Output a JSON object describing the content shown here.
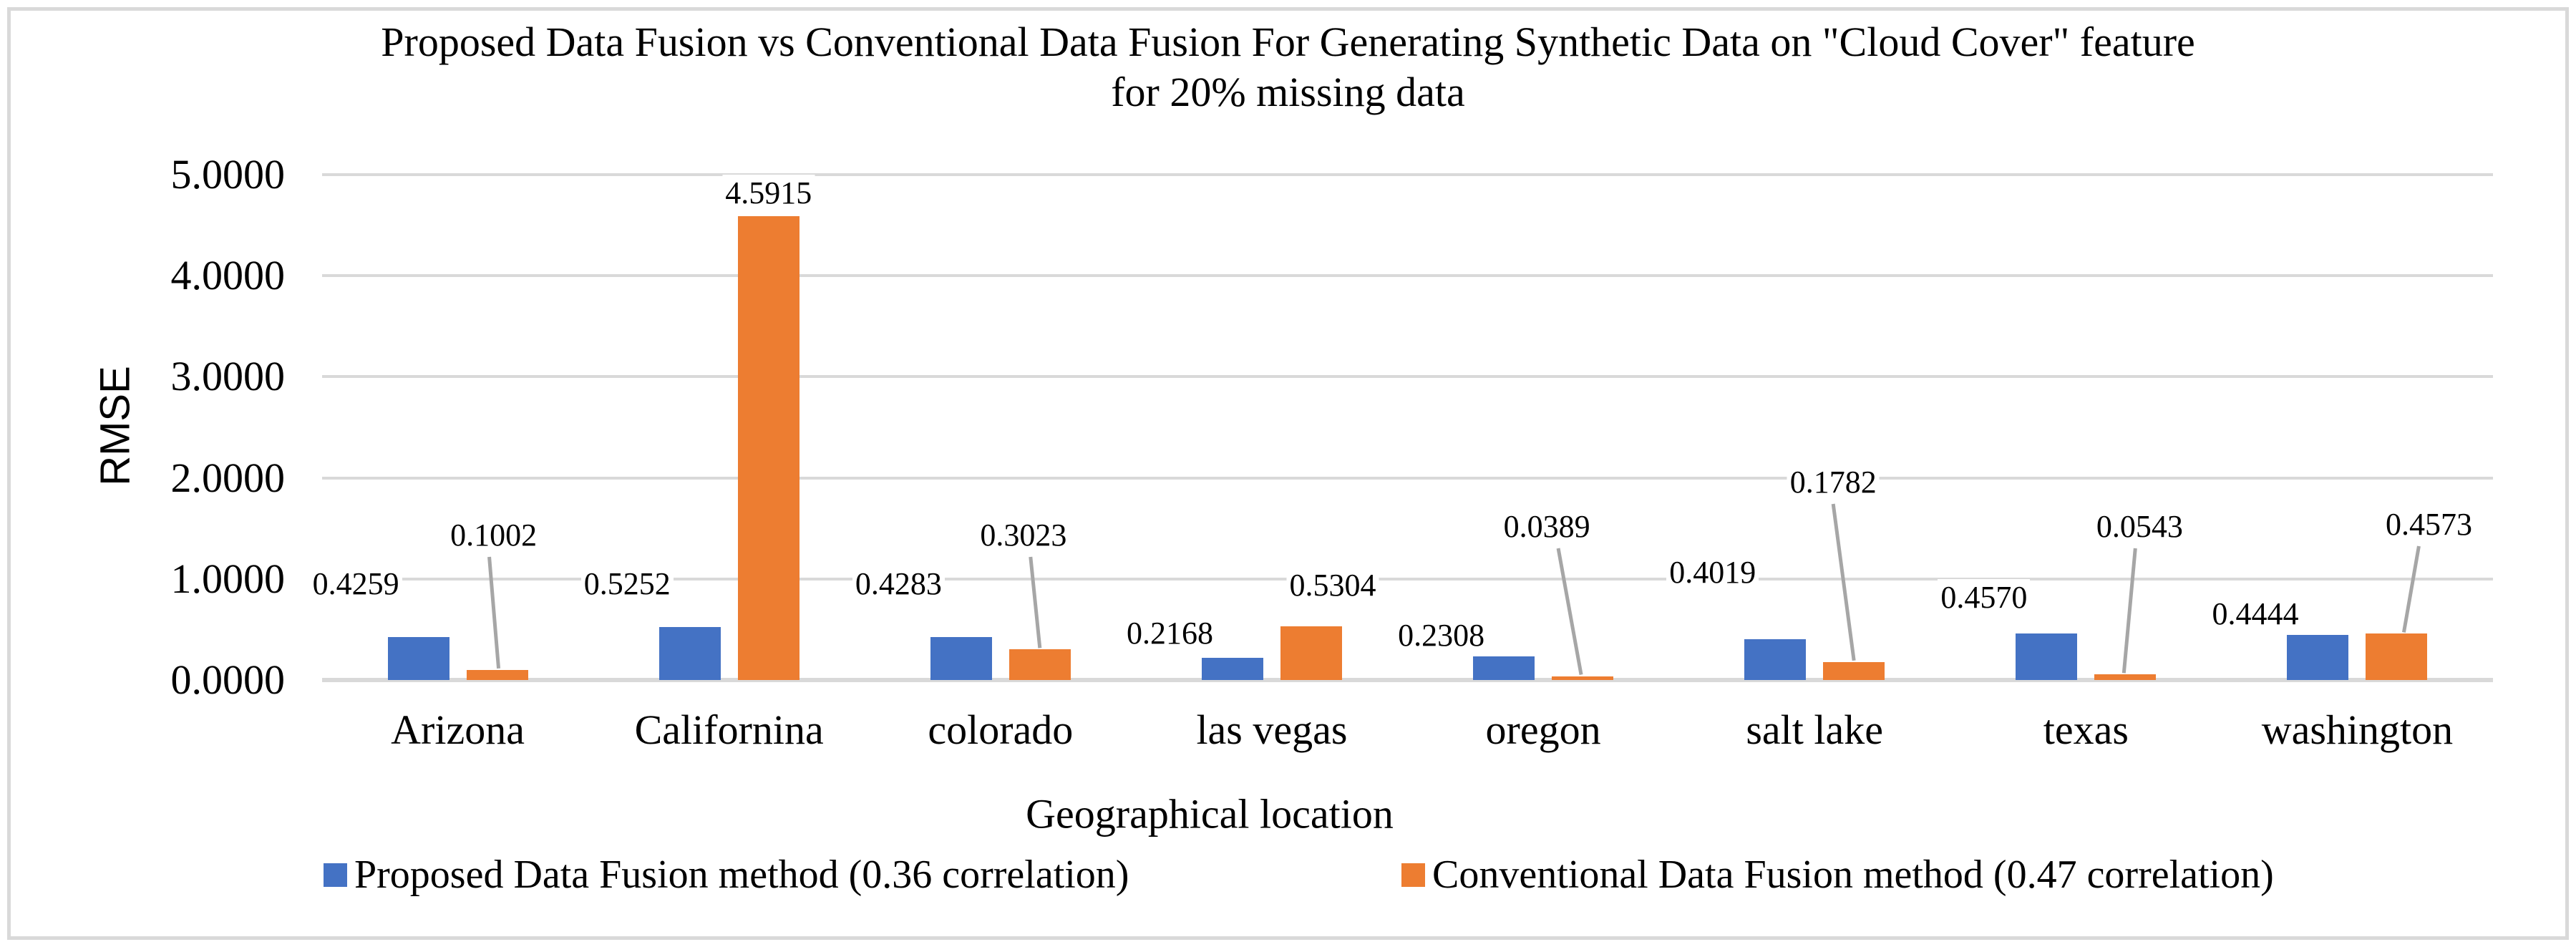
{
  "title": {
    "line1": "Proposed Data Fusion vs Conventional Data Fusion For Generating Synthetic Data on \"Cloud Cover\" feature",
    "line2": "for 20% missing data"
  },
  "y_axis": {
    "title": "RMSE",
    "tick_labels": [
      "0.0000",
      "1.0000",
      "2.0000",
      "3.0000",
      "4.0000",
      "5.0000"
    ],
    "min": 0,
    "max": 5,
    "step": 1
  },
  "x_axis": {
    "title": "Geographical location",
    "categories": [
      "Arizona",
      "Californina",
      "colorado",
      "las vegas",
      "oregon",
      "salt lake",
      "texas",
      "washington"
    ]
  },
  "legend": {
    "position": "bottom",
    "items": [
      {
        "label": "Proposed Data Fusion method (0.36 correlation)",
        "color": "#4472C4"
      },
      {
        "label": "Conventional Data Fusion method (0.47 correlation)",
        "color": "#ED7D31"
      }
    ]
  },
  "chart_data": {
    "type": "bar",
    "title": "Proposed Data Fusion vs Conventional Data Fusion For Generating Synthetic Data on \"Cloud Cover\" feature for 20% missing data",
    "xlabel": "Geographical location",
    "ylabel": "RMSE",
    "ylim": [
      0,
      5
    ],
    "grid": true,
    "legend_position": "bottom",
    "categories": [
      "Arizona",
      "Californina",
      "colorado",
      "las vegas",
      "oregon",
      "salt lake",
      "texas",
      "washington"
    ],
    "series": [
      {
        "name": "Proposed Data Fusion method (0.36 correlation)",
        "color": "#4472C4",
        "values": [
          0.4259,
          0.5252,
          0.4283,
          0.2168,
          0.2308,
          0.4019,
          0.457,
          0.4444
        ],
        "value_labels": [
          "0.4259",
          "0.5252",
          "0.4283",
          "0.2168",
          "0.2308",
          "0.4019",
          "0.4570",
          "0.4444"
        ]
      },
      {
        "name": "Conventional Data Fusion method (0.47 correlation)",
        "color": "#ED7D31",
        "values": [
          0.1002,
          4.5915,
          0.3023,
          0.5304,
          0.0389,
          0.1782,
          0.0543,
          0.4573
        ],
        "value_labels": [
          "0.1002",
          "4.5915",
          "0.3023",
          "0.5304",
          "0.0389",
          "0.1782",
          "0.0543",
          "0.4573"
        ]
      }
    ]
  },
  "colors": {
    "bar_blue": "#4472C4",
    "bar_orange": "#ED7D31",
    "gridline": "#D9D9D9",
    "leader_line": "#A6A6A6",
    "frame_border": "#D9D9D9",
    "text": "#000000",
    "background": "#FFFFFF"
  }
}
